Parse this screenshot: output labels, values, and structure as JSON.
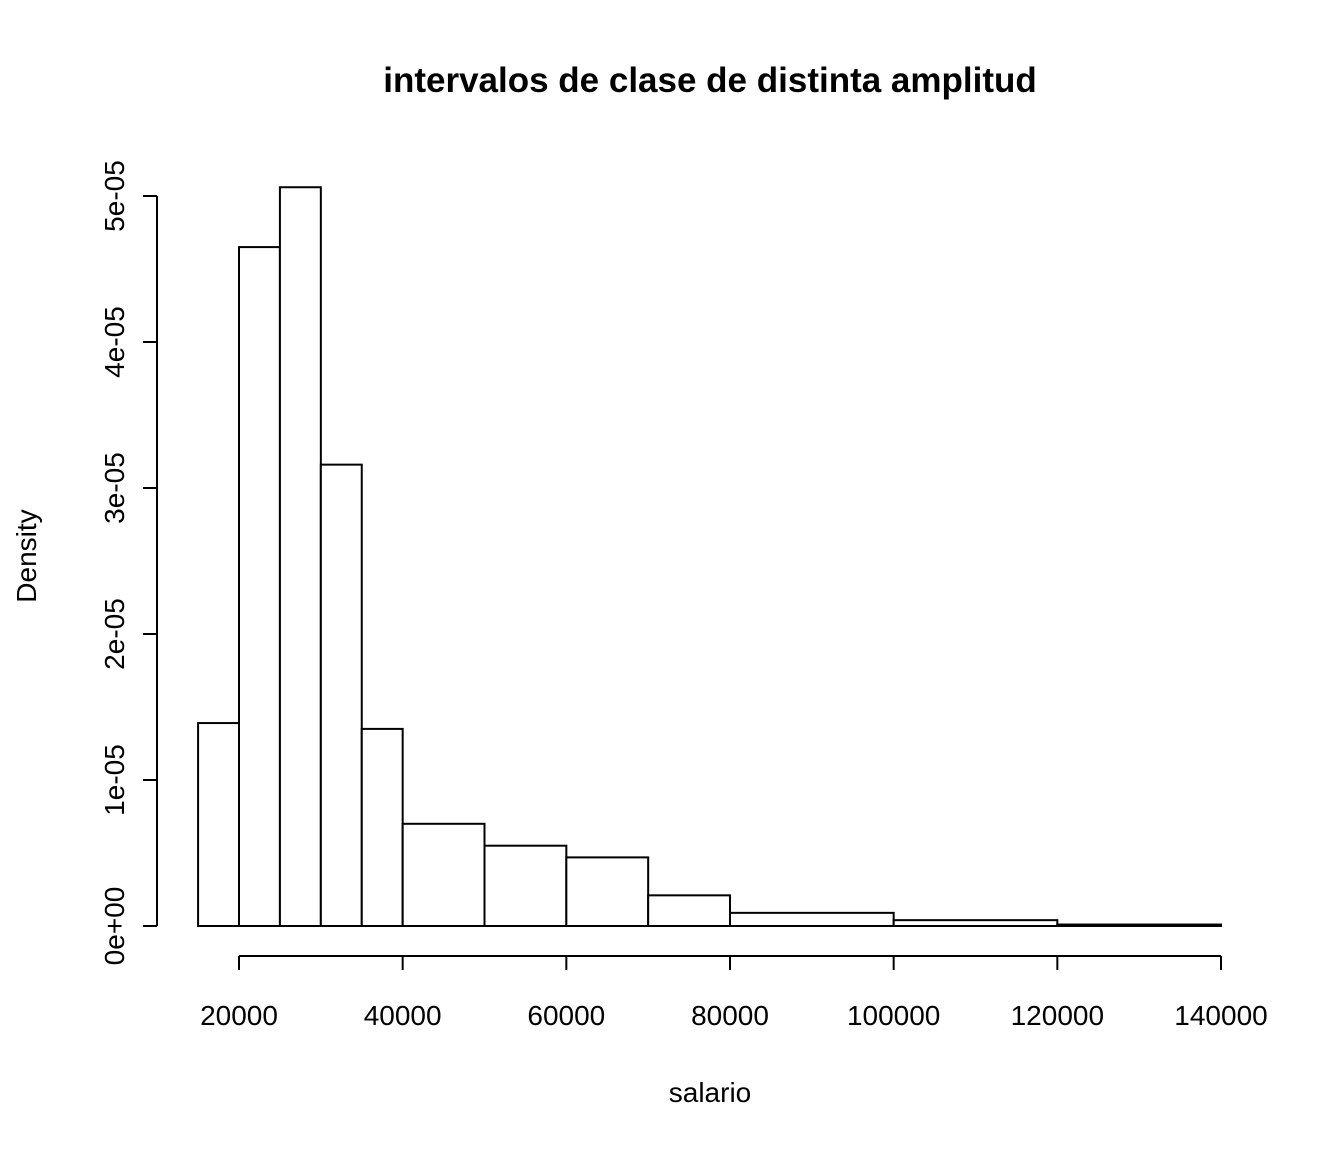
{
  "chart_data": {
    "type": "bar",
    "title": "intervalos de clase de distinta amplitud",
    "xlabel": "salario",
    "ylabel": "Density",
    "xlim": [
      15000,
      140000
    ],
    "ylim": [
      0,
      5e-05
    ],
    "x_ticks": [
      20000,
      40000,
      60000,
      80000,
      100000,
      120000,
      140000
    ],
    "x_tick_labels": [
      "20000",
      "40000",
      "60000",
      "80000",
      "100000",
      "120000",
      "140000"
    ],
    "y_ticks": [
      0,
      1e-05,
      2e-05,
      3e-05,
      4e-05,
      5e-05
    ],
    "y_tick_labels": [
      "0e+00",
      "1e-05",
      "2e-05",
      "3e-05",
      "4e-05",
      "5e-05"
    ],
    "bins": [
      {
        "from": 15000,
        "to": 20000,
        "density": 1.39e-05
      },
      {
        "from": 20000,
        "to": 25000,
        "density": 4.65e-05
      },
      {
        "from": 25000,
        "to": 30000,
        "density": 5.06e-05
      },
      {
        "from": 30000,
        "to": 35000,
        "density": 3.16e-05
      },
      {
        "from": 35000,
        "to": 40000,
        "density": 1.35e-05
      },
      {
        "from": 40000,
        "to": 50000,
        "density": 7e-06
      },
      {
        "from": 50000,
        "to": 60000,
        "density": 5.5e-06
      },
      {
        "from": 60000,
        "to": 70000,
        "density": 4.7e-06
      },
      {
        "from": 70000,
        "to": 80000,
        "density": 2.1e-06
      },
      {
        "from": 80000,
        "to": 100000,
        "density": 9e-07
      },
      {
        "from": 100000,
        "to": 120000,
        "density": 4e-07
      },
      {
        "from": 120000,
        "to": 140000,
        "density": 1e-07
      }
    ],
    "grid": false,
    "legend": "none"
  }
}
